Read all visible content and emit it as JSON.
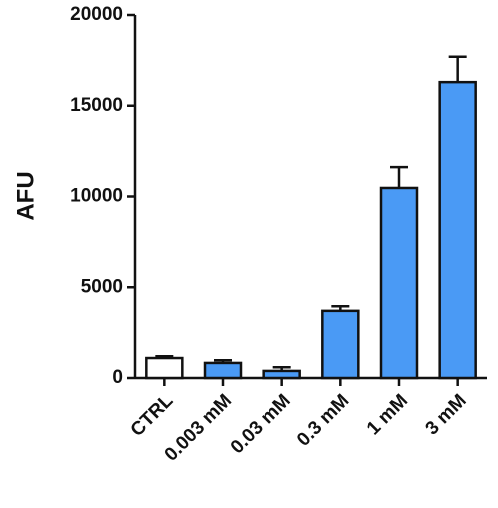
{
  "chart_data": {
    "type": "bar",
    "ylabel": "AFU",
    "categories": [
      "CTRL",
      "0.003 mM",
      "0.03 mM",
      "0.3 mM",
      "1 mM",
      "3 mM"
    ],
    "values": [
      1100,
      830,
      390,
      3700,
      10470,
      16300
    ],
    "errors": [
      100,
      150,
      200,
      250,
      1150,
      1400
    ],
    "colors": [
      "#ffffff",
      "#4a9af5",
      "#4a9af5",
      "#4a9af5",
      "#4a9af5",
      "#4a9af5"
    ],
    "ylim": [
      0,
      20000
    ],
    "yticks": [
      0,
      5000,
      10000,
      15000,
      20000
    ]
  }
}
